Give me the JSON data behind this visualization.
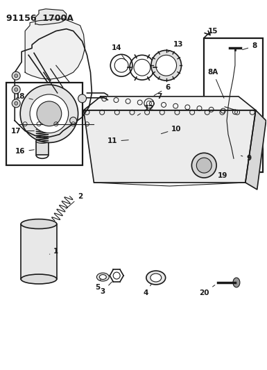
{
  "title": "91156  1700A",
  "bg_color": "#ffffff",
  "line_color": "#1a1a1a",
  "fig_width": 3.85,
  "fig_height": 5.33,
  "dpi": 100
}
